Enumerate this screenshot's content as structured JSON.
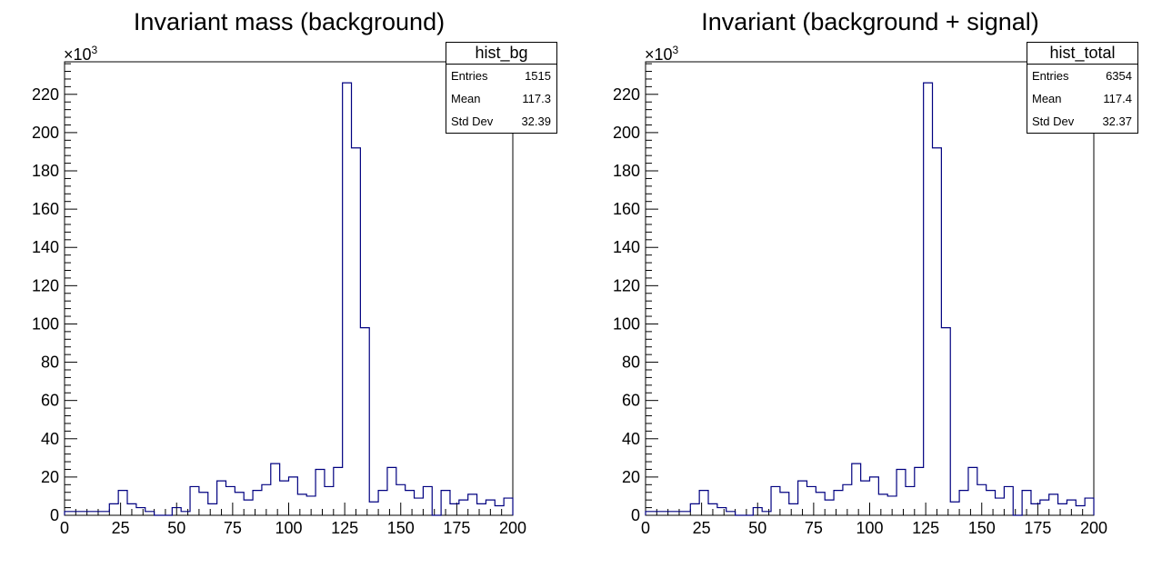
{
  "colors": {
    "line": "#000080",
    "axis": "#000000",
    "background": "#ffffff"
  },
  "chart_data": [
    {
      "type": "bar",
      "title": "Invariant mass (background)",
      "xlabel": "",
      "ylabel": "",
      "xlim": [
        0,
        200
      ],
      "ylim": [
        0,
        237
      ],
      "y_multiplier_base": "×10",
      "y_multiplier_exp": "3",
      "x_ticks": [
        "0",
        "25",
        "50",
        "75",
        "100",
        "125",
        "150",
        "175",
        "200"
      ],
      "y_ticks": [
        "0",
        "20",
        "40",
        "60",
        "80",
        "100",
        "120",
        "140",
        "160",
        "180",
        "200",
        "220"
      ],
      "grid": false,
      "bin_width": 4,
      "bin_start": 0,
      "values": [
        2,
        2,
        2,
        2,
        2,
        6,
        13,
        6,
        4,
        2,
        0,
        0,
        4,
        2,
        15,
        12,
        6,
        18,
        15,
        12,
        8,
        13,
        16,
        27,
        18,
        20,
        11,
        10,
        24,
        15,
        25,
        226,
        192,
        98,
        7,
        13,
        25,
        16,
        13,
        9,
        15,
        0,
        13,
        6,
        8,
        11,
        6,
        8,
        5,
        9
      ],
      "stats": {
        "name": "hist_bg",
        "rows": [
          {
            "key": "Entries",
            "value": "1515"
          },
          {
            "key": "Mean",
            "value": "117.3"
          },
          {
            "key": "Std Dev",
            "value": "32.39"
          }
        ]
      }
    },
    {
      "type": "bar",
      "title": "Invariant (background + signal)",
      "xlabel": "",
      "ylabel": "",
      "xlim": [
        0,
        200
      ],
      "ylim": [
        0,
        237
      ],
      "y_multiplier_base": "×10",
      "y_multiplier_exp": "3",
      "x_ticks": [
        "0",
        "25",
        "50",
        "75",
        "100",
        "125",
        "150",
        "175",
        "200"
      ],
      "y_ticks": [
        "0",
        "20",
        "40",
        "60",
        "80",
        "100",
        "120",
        "140",
        "160",
        "180",
        "200",
        "220"
      ],
      "grid": false,
      "bin_width": 4,
      "bin_start": 0,
      "values": [
        2,
        2,
        2,
        2,
        2,
        6,
        13,
        6,
        4,
        2,
        0,
        0,
        4,
        2,
        15,
        12,
        6,
        18,
        15,
        12,
        8,
        13,
        16,
        27,
        18,
        20,
        11,
        10,
        24,
        15,
        25,
        226,
        192,
        98,
        7,
        13,
        25,
        16,
        13,
        9,
        15,
        0,
        13,
        6,
        8,
        11,
        6,
        8,
        5,
        9
      ],
      "stats": {
        "name": "hist_total",
        "rows": [
          {
            "key": "Entries",
            "value": "6354"
          },
          {
            "key": "Mean",
            "value": "117.4"
          },
          {
            "key": "Std Dev",
            "value": "32.37"
          }
        ]
      }
    }
  ]
}
